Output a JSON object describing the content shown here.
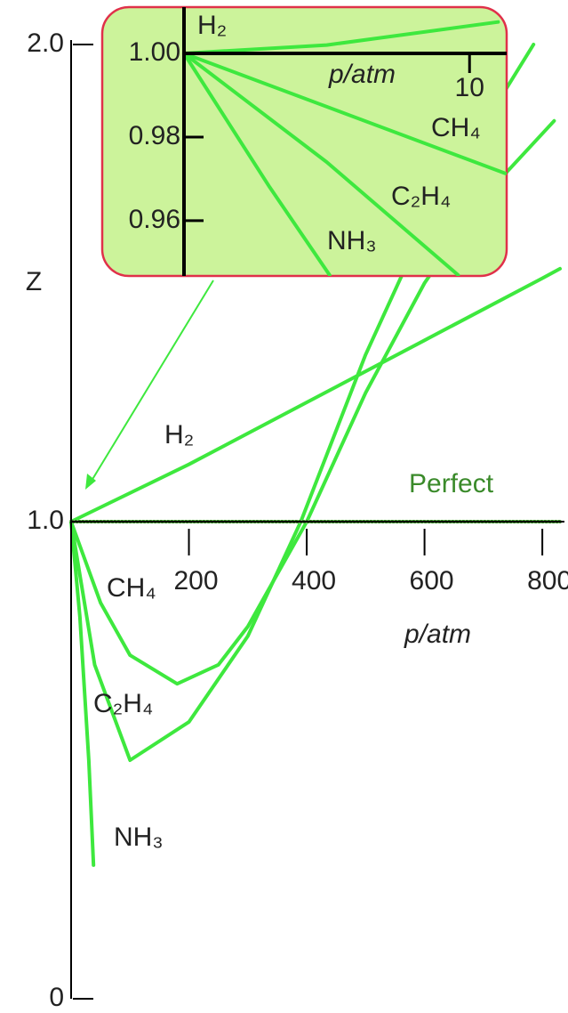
{
  "chart_data": [
    {
      "type": "line",
      "x_label": "p/atm",
      "y_label": "Z",
      "xlim": [
        0,
        830
      ],
      "ylim": [
        0,
        2.0
      ],
      "xticks": [
        200,
        400,
        600,
        800
      ],
      "yticks": [
        0,
        {
          "value": 1,
          "label": "1.0"
        },
        {
          "value": 2,
          "label": "2.0"
        }
      ],
      "series": [
        {
          "name": "H₂",
          "color": "#3ee83e",
          "x": [
            0,
            200,
            400,
            600,
            800,
            830
          ],
          "values": [
            1,
            1.12,
            1.25,
            1.38,
            1.51,
            1.53
          ]
        },
        {
          "name": "CH₄",
          "color": "#3ee83e",
          "x": [
            0,
            50,
            100,
            180,
            250,
            300,
            400,
            500,
            600,
            700,
            820
          ],
          "values": [
            1,
            0.83,
            0.72,
            0.66,
            0.7,
            0.78,
            1.0,
            1.27,
            1.5,
            1.68,
            1.84
          ]
        },
        {
          "name": "C₂H₄",
          "color": "#3ee83e",
          "x": [
            0,
            40,
            100,
            200,
            300,
            390,
            500,
            600,
            700,
            785
          ],
          "values": [
            1,
            0.7,
            0.5,
            0.58,
            0.76,
            1.0,
            1.35,
            1.62,
            1.83,
            2.0
          ]
        },
        {
          "name": "NH₃",
          "color": "#3ee83e",
          "x": [
            0,
            15,
            30,
            38
          ],
          "values": [
            1,
            0.8,
            0.5,
            0.28
          ]
        },
        {
          "name": "Perfect",
          "color": "#3a8a2a",
          "x": [
            0,
            830
          ],
          "values": [
            1,
            1
          ]
        }
      ]
    },
    {
      "type": "line",
      "x_label": "p/atm",
      "xlim": [
        0,
        11.3
      ],
      "ylim": [
        0.947,
        1.01
      ],
      "xticks": [
        10
      ],
      "yticks": [
        {
          "value": 1,
          "label": "1.00"
        },
        0.98,
        0.96
      ],
      "series": [
        {
          "name": "H₂",
          "color": "#3ee83e",
          "x": [
            0,
            5,
            11
          ],
          "values": [
            1,
            1.002,
            1.0075
          ]
        },
        {
          "name": "CH₄",
          "color": "#3ee83e",
          "x": [
            0,
            11.25
          ],
          "values": [
            1,
            0.9713
          ]
        },
        {
          "name": "C₂H₄",
          "color": "#3ee83e",
          "x": [
            0,
            5,
            9.6
          ],
          "values": [
            1,
            0.974,
            0.947
          ]
        },
        {
          "name": "NH₃",
          "color": "#3ee83e",
          "x": [
            0,
            3,
            5.1
          ],
          "values": [
            1,
            0.968,
            0.947
          ]
        }
      ]
    }
  ]
}
